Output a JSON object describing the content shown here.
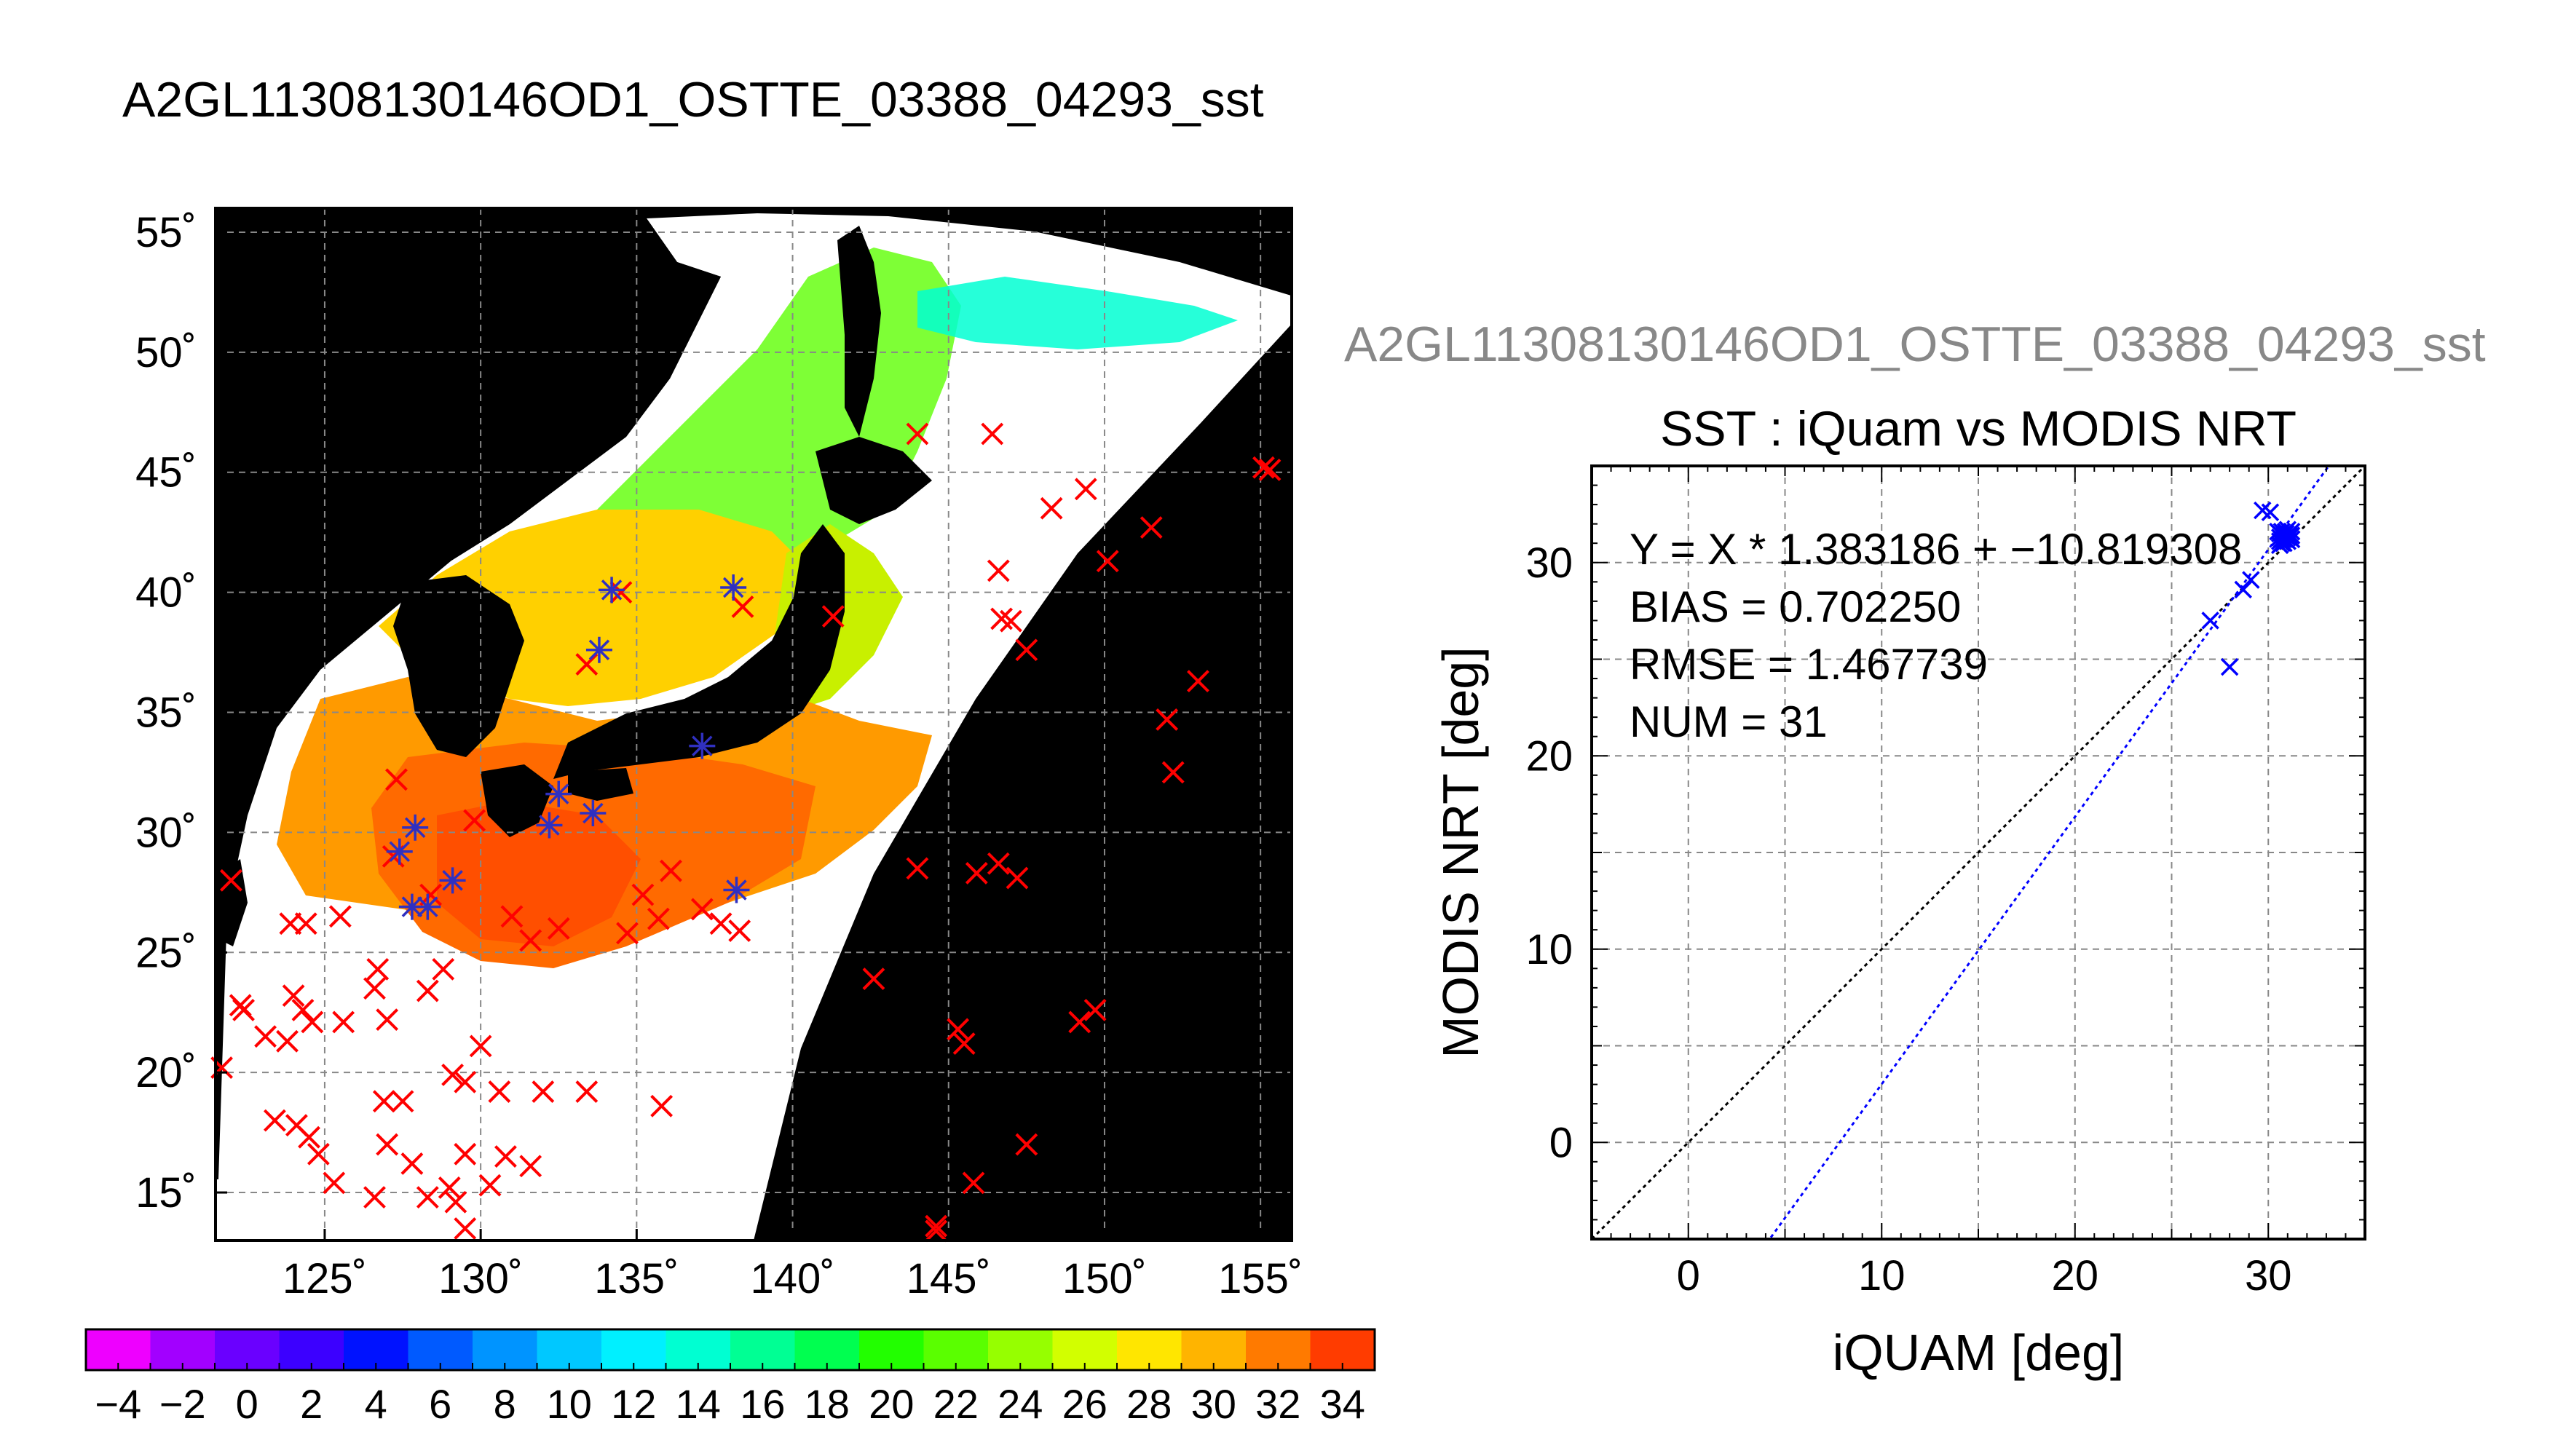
{
  "page_title": "A2GL11308130146OD1_OSTTE_03388_04293_sst",
  "chart_data": [
    {
      "type": "map",
      "name": "sst-map",
      "lon_range": [
        121.5,
        156
      ],
      "lat_range": [
        13,
        56
      ],
      "lon_ticks": [
        125,
        130,
        135,
        140,
        145,
        150,
        155
      ],
      "lat_ticks": [
        15,
        20,
        25,
        30,
        35,
        40,
        45,
        50,
        55
      ],
      "lon_tick_labels": [
        "125˚",
        "130˚",
        "135˚",
        "140˚",
        "145˚",
        "150˚",
        "155˚"
      ],
      "lat_tick_labels": [
        "15˚",
        "20˚",
        "25˚",
        "30˚",
        "35˚",
        "40˚",
        "45˚",
        "50˚",
        "55˚"
      ],
      "grid": true,
      "background_color": "#000000",
      "swath_color": "#ffffff",
      "red_markers": [
        [
          122,
          28
        ],
        [
          122.3,
          22.8
        ],
        [
          122.4,
          22.6
        ],
        [
          121.7,
          20.2
        ],
        [
          123.1,
          21.5
        ],
        [
          123.8,
          21.3
        ],
        [
          124.3,
          22.6
        ],
        [
          124.0,
          23.2
        ],
        [
          123.4,
          18
        ],
        [
          124.1,
          17.8
        ],
        [
          124.5,
          17.3
        ],
        [
          124.8,
          16.6
        ],
        [
          125.3,
          15.4
        ],
        [
          124.6,
          22.1
        ],
        [
          125.6,
          22.1
        ],
        [
          123.9,
          26.2
        ],
        [
          124.4,
          26.2
        ],
        [
          125.5,
          26.5
        ],
        [
          126.7,
          24.3
        ],
        [
          126.6,
          23.5
        ],
        [
          127.0,
          22.2
        ],
        [
          126.9,
          18.8
        ],
        [
          127.5,
          18.8
        ],
        [
          127.0,
          17.0
        ],
        [
          127.8,
          16.2
        ],
        [
          126.6,
          14.8
        ],
        [
          128.3,
          14.8
        ],
        [
          129.0,
          15.2
        ],
        [
          129.5,
          16.6
        ],
        [
          129.2,
          14.6
        ],
        [
          129.5,
          13.5
        ],
        [
          129.1,
          19.9
        ],
        [
          129.5,
          19.6
        ],
        [
          130.6,
          19.2
        ],
        [
          128.3,
          23.4
        ],
        [
          128.8,
          24.3
        ],
        [
          130.0,
          21.1
        ],
        [
          131.6,
          16.1
        ],
        [
          130.3,
          15.3
        ],
        [
          130.8,
          16.5
        ],
        [
          132.0,
          19.2
        ],
        [
          133.4,
          19.2
        ],
        [
          135.8,
          18.6
        ],
        [
          129.8,
          30.5
        ],
        [
          127.3,
          32.2
        ],
        [
          127.2,
          29.0
        ],
        [
          128.4,
          27.4
        ],
        [
          131.0,
          26.5
        ],
        [
          131.6,
          25.5
        ],
        [
          132.5,
          26.0
        ],
        [
          134.7,
          25.8
        ],
        [
          135.7,
          26.4
        ],
        [
          135.2,
          27.4
        ],
        [
          136.1,
          28.4
        ],
        [
          137.1,
          26.8
        ],
        [
          137.7,
          26.2
        ],
        [
          138.3,
          25.9
        ],
        [
          133.4,
          37.0
        ],
        [
          134.5,
          40.0
        ],
        [
          138.4,
          39.4
        ],
        [
          141.3,
          39.0
        ],
        [
          142.6,
          23.9
        ],
        [
          144.0,
          28.5
        ],
        [
          145.3,
          21.8
        ],
        [
          145.5,
          21.2
        ],
        [
          145.8,
          15.4
        ],
        [
          144.6,
          13.6
        ],
        [
          144.6,
          13.4
        ],
        [
          145.9,
          28.3
        ],
        [
          146.6,
          28.7
        ],
        [
          147.2,
          28.1
        ],
        [
          146.6,
          40.9
        ],
        [
          146.7,
          38.9
        ],
        [
          147.0,
          38.8
        ],
        [
          147.5,
          37.6
        ],
        [
          149.2,
          22.1
        ],
        [
          149.7,
          22.6
        ],
        [
          150.1,
          41.3
        ],
        [
          149.4,
          44.3
        ],
        [
          148.3,
          43.5
        ],
        [
          151.5,
          42.7
        ],
        [
          152.0,
          34.7
        ],
        [
          152.2,
          32.5
        ],
        [
          153.0,
          36.3
        ],
        [
          155.1,
          45.2
        ],
        [
          155.3,
          45.1
        ],
        [
          144.0,
          46.6
        ],
        [
          146.4,
          46.6
        ],
        [
          147.5,
          17.0
        ]
      ],
      "blue_markers": [
        [
          127.4,
          29.2
        ],
        [
          127.9,
          30.2
        ],
        [
          127.8,
          26.9
        ],
        [
          128.3,
          26.9
        ],
        [
          129.1,
          28.0
        ],
        [
          132.2,
          30.3
        ],
        [
          132.5,
          31.6
        ],
        [
          133.6,
          30.8
        ],
        [
          133.8,
          37.6
        ],
        [
          134.2,
          40.1
        ],
        [
          138.1,
          40.2
        ],
        [
          137.1,
          33.6
        ],
        [
          138.2,
          27.6
        ]
      ],
      "colorbar": {
        "min": -5,
        "max": 35,
        "step": 1,
        "tick_labels": [
          "−4",
          "−2",
          "0",
          "2",
          "4",
          "6",
          "8",
          "10",
          "12",
          "14",
          "16",
          "18",
          "20",
          "22",
          "24",
          "26",
          "28",
          "30",
          "32",
          "34"
        ],
        "tick_values": [
          -4,
          -2,
          0,
          2,
          4,
          6,
          8,
          10,
          12,
          14,
          16,
          18,
          20,
          22,
          24,
          26,
          28,
          30,
          32,
          34
        ],
        "color_stops": [
          [
            -5,
            "#ee00ff"
          ],
          [
            -3,
            "#a200ff"
          ],
          [
            -1,
            "#6a00ff"
          ],
          [
            1,
            "#3c00ff"
          ],
          [
            3,
            "#0012ff"
          ],
          [
            5,
            "#005aff"
          ],
          [
            7,
            "#0094ff"
          ],
          [
            9,
            "#00c8ff"
          ],
          [
            11,
            "#00f0ff"
          ],
          [
            13,
            "#00ffd2"
          ],
          [
            15,
            "#00ff94"
          ],
          [
            17,
            "#00ff50"
          ],
          [
            19,
            "#22ff00"
          ],
          [
            21,
            "#5aff00"
          ],
          [
            23,
            "#96ff00"
          ],
          [
            25,
            "#d2ff00"
          ],
          [
            27,
            "#ffe600"
          ],
          [
            29,
            "#ffb400"
          ],
          [
            31,
            "#ff7a00"
          ],
          [
            33,
            "#ff3c00"
          ],
          [
            35,
            "#ff0000"
          ]
        ]
      }
    },
    {
      "type": "scatter",
      "name": "sst-scatter",
      "header": "A2GL11308130146OD1_OSTTE_03388_04293_sst",
      "title": "SST : iQuam vs MODIS NRT",
      "xlabel": "iQUAM [deg]",
      "ylabel": "MODIS NRT [deg]",
      "xlim": [
        -5,
        35
      ],
      "ylim": [
        -5,
        35
      ],
      "x_ticks": [
        0,
        10,
        20,
        30
      ],
      "y_ticks": [
        0,
        10,
        20,
        30
      ],
      "grid": true,
      "annotations": [
        "Y = X * 1.383186 + −10.819308",
        "BIAS = 0.702250",
        "RMSE = 1.467739",
        "NUM = 31"
      ],
      "fit": {
        "slope": 1.383186,
        "intercept": -10.819308,
        "color": "#0000ff"
      },
      "identity_color": "#000000",
      "point_color": "#0000ff",
      "points": [
        [
          27.0,
          27.0
        ],
        [
          28.0,
          24.6
        ],
        [
          28.7,
          28.6
        ],
        [
          29.1,
          29.1
        ],
        [
          29.7,
          32.7
        ],
        [
          30.1,
          32.6
        ],
        [
          30.5,
          31.6
        ],
        [
          30.6,
          31.3
        ],
        [
          30.6,
          30.9
        ],
        [
          30.7,
          31.2
        ],
        [
          30.7,
          31.6
        ],
        [
          30.8,
          31.4
        ],
        [
          30.8,
          31.0
        ],
        [
          30.9,
          31.5
        ],
        [
          30.9,
          31.2
        ],
        [
          31.0,
          31.7
        ],
        [
          31.0,
          31.4
        ],
        [
          31.0,
          31.1
        ],
        [
          31.1,
          31.5
        ],
        [
          31.1,
          31.3
        ],
        [
          31.2,
          31.6
        ],
        [
          31.2,
          31.2
        ],
        [
          30.6,
          31.5
        ],
        [
          30.7,
          31.0
        ],
        [
          30.9,
          31.6
        ],
        [
          30.8,
          31.2
        ],
        [
          31.0,
          31.3
        ],
        [
          31.1,
          31.4
        ],
        [
          30.6,
          31.1
        ],
        [
          30.8,
          31.5
        ],
        [
          31.2,
          31.4
        ]
      ]
    }
  ]
}
